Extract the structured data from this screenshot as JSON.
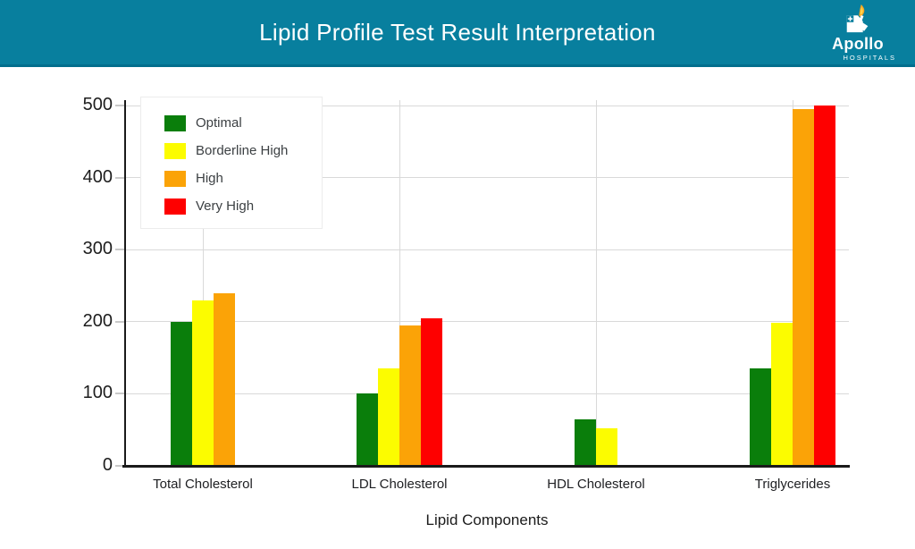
{
  "header": {
    "title": "Lipid Profile Test Result Interpretation",
    "logo": {
      "brand": "Apollo",
      "sub": "HOSPITALS"
    }
  },
  "chart_data": {
    "type": "bar",
    "title": "Lipid Profile Test Result Interpretation",
    "categories": [
      "Total Cholesterol",
      "LDL Cholesterol",
      "HDL Cholesterol",
      "Triglycerides"
    ],
    "series": [
      {
        "name": "Optimal",
        "color": "#0A7E0B",
        "values": [
          200,
          100,
          65,
          135
        ]
      },
      {
        "name": "Borderline High",
        "color": "#FCFC00",
        "values": [
          230,
          135,
          52,
          199
        ]
      },
      {
        "name": "High",
        "color": "#FBA307",
        "values": [
          240,
          195,
          null,
          495
        ]
      },
      {
        "name": "Very High",
        "color": "#FE0000",
        "values": [
          null,
          205,
          null,
          500
        ]
      }
    ],
    "xlabel": "Lipid Components",
    "ylabel": "",
    "ylim": [
      0,
      500
    ],
    "yticks": [
      0,
      100,
      200,
      300,
      400,
      500
    ],
    "grid": true,
    "legend_position": "top-left"
  },
  "colors": {
    "header_bg": "#087F9E",
    "header_border": "#026E8D",
    "axis": "#1A1A1A",
    "gridline": "#D9D9D9",
    "tick_text": "#1D1D1D",
    "label_text": "#202124",
    "flame": "#F7A823",
    "flame_tip": "#FFD34D"
  }
}
